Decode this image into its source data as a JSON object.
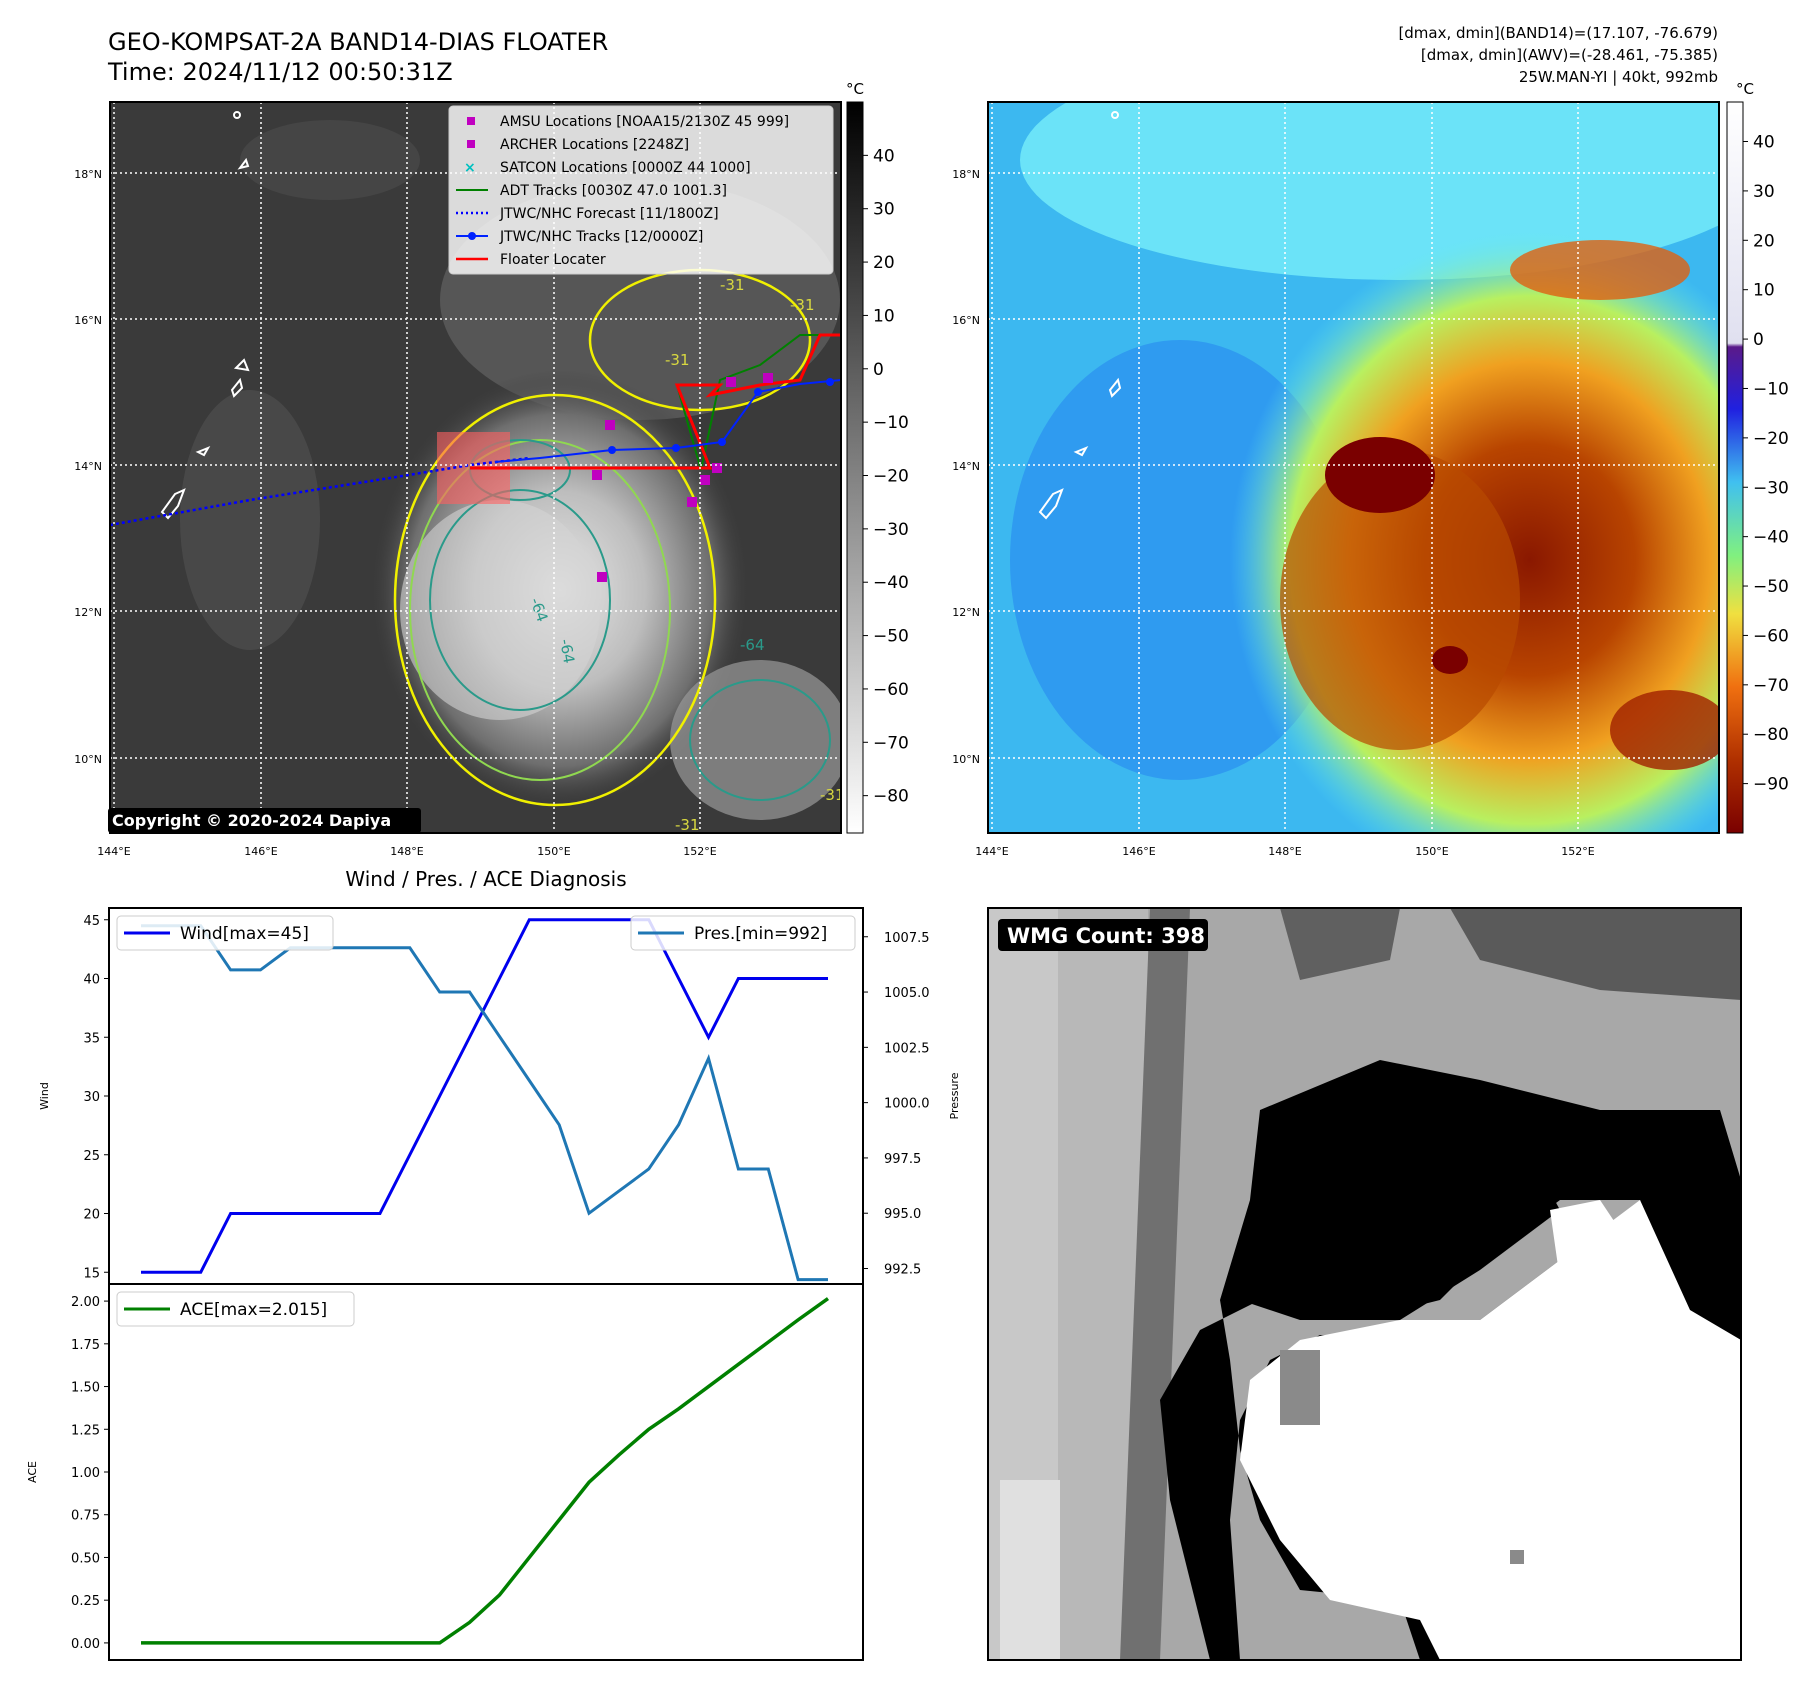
{
  "header": {
    "title_line1": "GEO-KOMPSAT-2A BAND14-DIAS FLOATER",
    "title_line2": "Time: 2024/11/12 00:50:31Z",
    "info_line1": "[dmax, dmin](BAND14)=(17.107, -76.679)",
    "info_line2": "[dmax, dmin](AWV)=(-28.461, -75.385)",
    "info_line3": "25W.MAN-YI | 40kt, 992mb"
  },
  "copyright": "Copyright © 2020-2024 Dapiya",
  "colors": {
    "amsu": "#c000c0",
    "archer": "#c000c0",
    "satcon": "#00c0c0",
    "adt": "#008000",
    "jtwc_forecast": "#0000ff",
    "jtwc_tracks": "#0022ff",
    "floater": "#ff0000",
    "wind": "#0000ee",
    "pressure": "#1f77b4",
    "ace": "#008000"
  },
  "map_ir": {
    "colorbar_unit": "°C",
    "colorbar_ticks": [
      "40",
      "30",
      "20",
      "10",
      "0",
      "−10",
      "−20",
      "−30",
      "−40",
      "−50",
      "−60",
      "−70",
      "−80"
    ],
    "lat_labels": [
      "18°N",
      "16°N",
      "14°N",
      "12°N",
      "10°N"
    ],
    "lon_labels": [
      "144°E",
      "146°E",
      "148°E",
      "150°E",
      "152°E"
    ],
    "legend": [
      {
        "label": "AMSU Locations [NOAA15/2130Z 45 999]",
        "icon": "square-marker-icon"
      },
      {
        "label": "ARCHER Locations [2248Z]",
        "icon": "square-marker-icon"
      },
      {
        "label": "SATCON Locations [0000Z 44 1000]",
        "icon": "x-marker-icon"
      },
      {
        "label": "ADT Tracks [0030Z 47.0 1001.3]",
        "icon": "solid-line-icon"
      },
      {
        "label": "JTWC/NHC Forecast [11/1800Z]",
        "icon": "dotted-line-icon"
      },
      {
        "label": "JTWC/NHC Tracks [12/0000Z]",
        "icon": "line-dot-icon"
      },
      {
        "label": "Floater Locater",
        "icon": "solid-line-icon"
      }
    ],
    "contour_labels": [
      "-31",
      "-31",
      "-31",
      "-64",
      "-64",
      "-31",
      "-64",
      "-31"
    ]
  },
  "map_awv": {
    "colorbar_unit": "°C",
    "colorbar_ticks": [
      "40",
      "30",
      "20",
      "10",
      "0",
      "−10",
      "−20",
      "−30",
      "−40",
      "−50",
      "−60",
      "−70",
      "−80",
      "−90"
    ],
    "lat_labels": [
      "18°N",
      "16°N",
      "14°N",
      "12°N",
      "10°N"
    ],
    "lon_labels": [
      "144°E",
      "146°E",
      "148°E",
      "150°E",
      "152°E"
    ]
  },
  "chart_data": [
    {
      "type": "line",
      "title": "Wind / Pres. / ACE Diagnosis",
      "x": [
        0,
        1,
        2,
        3,
        4,
        5,
        6,
        7,
        8,
        9,
        10,
        11,
        12,
        13,
        14,
        15,
        16,
        17,
        18,
        19,
        20,
        21,
        22,
        23
      ],
      "ylabel": "Wind",
      "ylim": [
        14,
        46
      ],
      "y_ticks": [
        "45",
        "40",
        "35",
        "30",
        "25",
        "20",
        "15"
      ],
      "series": [
        {
          "name": "Wind[max=45]",
          "axis": "left",
          "values": [
            15,
            15,
            15,
            20,
            20,
            20,
            20,
            20,
            20,
            25,
            30,
            35,
            40,
            45,
            45,
            45,
            45,
            45,
            40,
            35,
            40,
            40,
            40,
            40
          ]
        }
      ],
      "ylabel_right": "Pressure",
      "ylim_right": [
        991.8,
        1008.8
      ],
      "y_ticks_right": [
        "1007.5",
        "1005.0",
        "1002.5",
        "1000.0",
        "997.5",
        "995.0",
        "992.5"
      ],
      "series_right": [
        {
          "name": "Pres.[min=992]",
          "axis": "right",
          "values": [
            1008,
            1008,
            1008,
            1006,
            1006,
            1007,
            1007,
            1007,
            1007,
            1007,
            1005,
            1005,
            1003,
            1001,
            999,
            995,
            996,
            997,
            999,
            1002,
            997,
            997,
            992,
            992
          ]
        }
      ],
      "legend": "top-left / top-right"
    },
    {
      "type": "line",
      "x": [
        0,
        1,
        2,
        3,
        4,
        5,
        6,
        7,
        8,
        9,
        10,
        11,
        12,
        13,
        14,
        15,
        16,
        17,
        18,
        19,
        20,
        21,
        22,
        23
      ],
      "ylabel": "ACE",
      "ylim": [
        -0.1,
        2.1
      ],
      "y_ticks": [
        "2.00",
        "1.75",
        "1.50",
        "1.25",
        "1.00",
        "0.75",
        "0.50",
        "0.25",
        "0.00"
      ],
      "series": [
        {
          "name": "ACE[max=2.015]",
          "values": [
            0,
            0,
            0,
            0,
            0,
            0,
            0,
            0,
            0,
            0,
            0,
            0.12,
            0.28,
            0.5,
            0.72,
            0.94,
            1.1,
            1.25,
            1.37,
            1.5,
            1.63,
            1.76,
            1.89,
            2.015
          ]
        }
      ],
      "legend": "top-left"
    }
  ],
  "wmg": {
    "label": "WMG Count: 398"
  }
}
